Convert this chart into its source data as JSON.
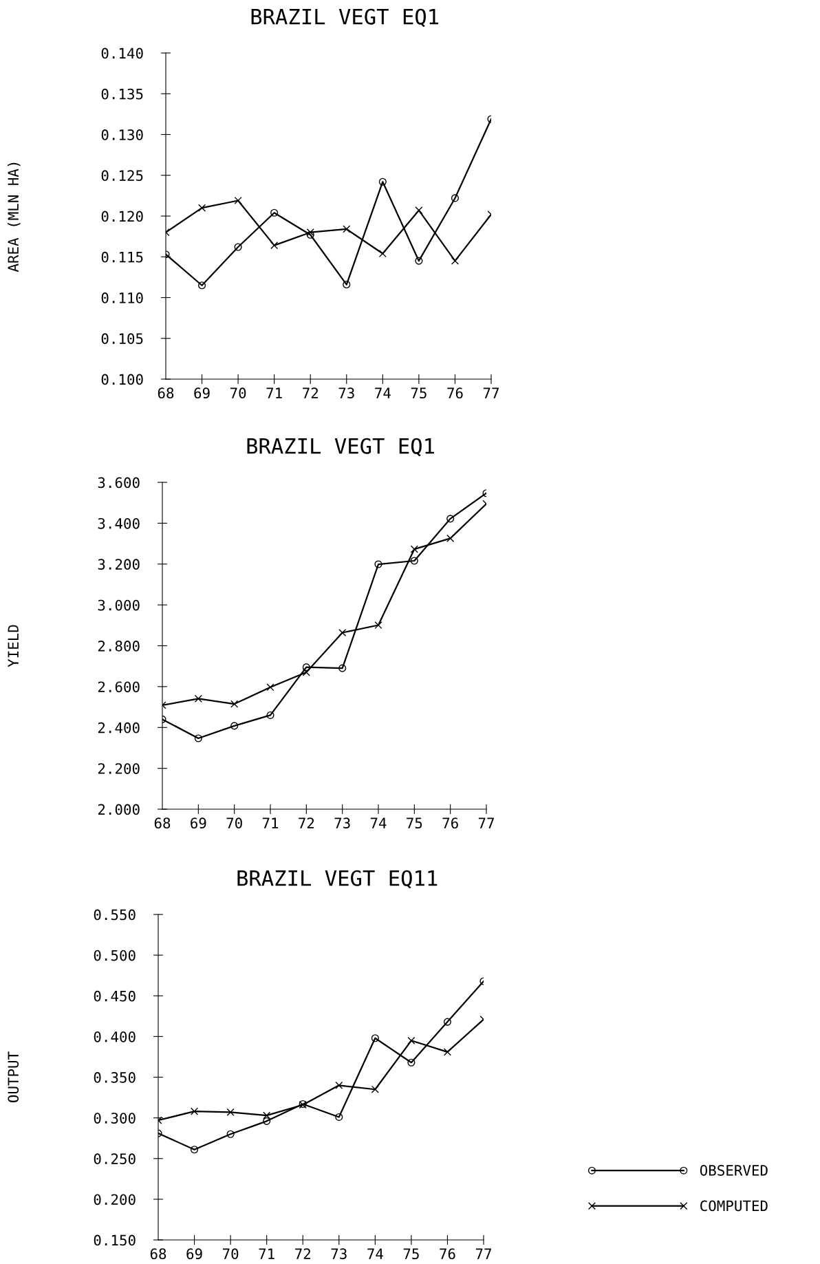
{
  "chart_data": [
    {
      "type": "line",
      "title": "BRAZIL VEGT EQ1",
      "ylabel": "AREA (MLN HA)",
      "x": [
        68,
        69,
        70,
        71,
        72,
        73,
        74,
        75,
        76,
        77
      ],
      "xlim": [
        68,
        77
      ],
      "xticks": [
        68,
        69,
        70,
        71,
        72,
        73,
        74,
        75,
        76,
        77
      ],
      "ylim": [
        0.1,
        0.14
      ],
      "yticks": [
        {
          "value": 0.1,
          "label": "0.100"
        },
        {
          "value": 0.105,
          "label": "0.105"
        },
        {
          "value": 0.11,
          "label": "0.110"
        },
        {
          "value": 0.115,
          "label": "0.115"
        },
        {
          "value": 0.12,
          "label": "0.120"
        },
        {
          "value": 0.125,
          "label": "0.125"
        },
        {
          "value": 0.13,
          "label": "0.130"
        },
        {
          "value": 0.135,
          "label": "0.135"
        },
        {
          "value": 0.14,
          "label": "0.140"
        }
      ],
      "grid": false,
      "legend": false,
      "series": [
        {
          "color": "#000000",
          "marker": "circle",
          "values": [
            0.1153,
            0.1115,
            0.1162,
            0.1204,
            0.1177,
            0.1116,
            0.1242,
            0.1145,
            0.1222,
            0.1319
          ]
        },
        {
          "color": "#000000",
          "marker": "cross",
          "values": [
            0.118,
            0.121,
            0.1219,
            0.1164,
            0.118,
            0.1184,
            0.1154,
            0.1207,
            0.1145,
            0.1202
          ]
        }
      ]
    },
    {
      "type": "line",
      "title": "BRAZIL VEGT EQ1",
      "ylabel": "YIELD",
      "x": [
        68,
        69,
        70,
        71,
        72,
        73,
        74,
        75,
        76,
        77
      ],
      "xlim": [
        68,
        77
      ],
      "xticks": [
        68,
        69,
        70,
        71,
        72,
        73,
        74,
        75,
        76,
        77
      ],
      "ylim": [
        2.0,
        3.6
      ],
      "yticks": [
        {
          "value": 2.0,
          "label": "2.000"
        },
        {
          "value": 2.2,
          "label": "2.200"
        },
        {
          "value": 2.4,
          "label": "2.400"
        },
        {
          "value": 2.6,
          "label": "2.600"
        },
        {
          "value": 2.8,
          "label": "2.800"
        },
        {
          "value": 3.0,
          "label": "3.000"
        },
        {
          "value": 3.2,
          "label": "3.200"
        },
        {
          "value": 3.4,
          "label": "3.400"
        },
        {
          "value": 3.6,
          "label": "3.600"
        }
      ],
      "grid": false,
      "legend": false,
      "series": [
        {
          "color": "#000000",
          "marker": "circle",
          "values": [
            2.44,
            2.347,
            2.408,
            2.46,
            2.695,
            2.69,
            3.199,
            3.216,
            3.422,
            3.547
          ]
        },
        {
          "color": "#000000",
          "marker": "cross",
          "values": [
            2.509,
            2.541,
            2.515,
            2.597,
            2.67,
            2.864,
            2.901,
            3.273,
            3.326,
            3.495
          ]
        }
      ]
    },
    {
      "type": "line",
      "title": "BRAZIL VEGT EQ11",
      "ylabel": "OUTPUT",
      "x": [
        68,
        69,
        70,
        71,
        72,
        73,
        74,
        75,
        76,
        77
      ],
      "xlim": [
        68,
        77
      ],
      "xticks": [
        68,
        69,
        70,
        71,
        72,
        73,
        74,
        75,
        76,
        77
      ],
      "ylim": [
        0.15,
        0.55
      ],
      "yticks": [
        {
          "value": 0.15,
          "label": "0.150"
        },
        {
          "value": 0.2,
          "label": "0.200"
        },
        {
          "value": 0.25,
          "label": "0.250"
        },
        {
          "value": 0.3,
          "label": "0.300"
        },
        {
          "value": 0.35,
          "label": "0.350"
        },
        {
          "value": 0.4,
          "label": "0.400"
        },
        {
          "value": 0.45,
          "label": "0.450"
        },
        {
          "value": 0.5,
          "label": "0.500"
        },
        {
          "value": 0.55,
          "label": "0.550"
        }
      ],
      "grid": false,
      "legend": "bottom right",
      "series": [
        {
          "name": "OBSERVED",
          "color": "#000000",
          "marker": "circle",
          "values": [
            0.281,
            0.261,
            0.28,
            0.296,
            0.317,
            0.301,
            0.398,
            0.368,
            0.418,
            0.468
          ]
        },
        {
          "name": "COMPUTED",
          "color": "#000000",
          "marker": "cross",
          "values": [
            0.297,
            0.308,
            0.307,
            0.303,
            0.316,
            0.34,
            0.335,
            0.395,
            0.381,
            0.421
          ]
        }
      ]
    }
  ]
}
